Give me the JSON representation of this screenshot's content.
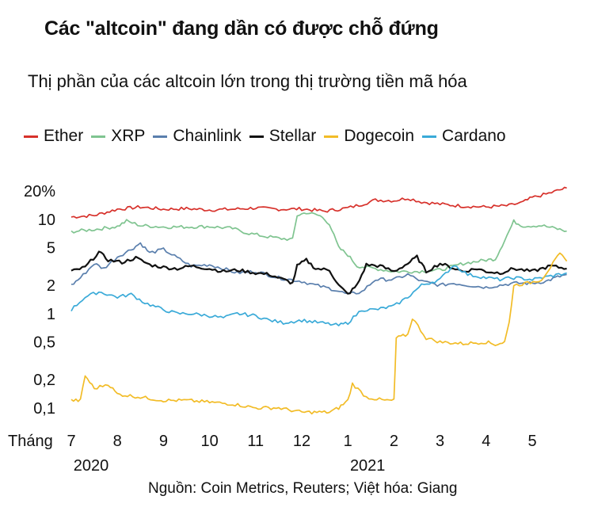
{
  "title": "Các \"altcoin\" đang dần có được chỗ đứng",
  "subtitle": "Thị phần của các altcoin lớn trong thị trường tiền mã hóa",
  "source": "Nguồn: Coin Metrics, Reuters; Việt hóa: Giang",
  "chart_data": {
    "type": "line",
    "yscale": "log",
    "ylim": [
      0.08,
      24
    ],
    "y_ticks": [
      {
        "value": 20,
        "label": "20%"
      },
      {
        "value": 10,
        "label": "10"
      },
      {
        "value": 5,
        "label": "5"
      },
      {
        "value": 2,
        "label": "2"
      },
      {
        "value": 1,
        "label": "1"
      },
      {
        "value": 0.5,
        "label": "0,5"
      },
      {
        "value": 0.2,
        "label": "0,2"
      },
      {
        "value": 0.1,
        "label": "0,1"
      }
    ],
    "x_axis_prefix": "Tháng",
    "x_ticks": [
      {
        "month": 7,
        "label": "7"
      },
      {
        "month": 8,
        "label": "8"
      },
      {
        "month": 9,
        "label": "9"
      },
      {
        "month": 10,
        "label": "10"
      },
      {
        "month": 11,
        "label": "11"
      },
      {
        "month": 12,
        "label": "12"
      },
      {
        "month": 13,
        "label": "1"
      },
      {
        "month": 14,
        "label": "2"
      },
      {
        "month": 15,
        "label": "3"
      },
      {
        "month": 16,
        "label": "4"
      },
      {
        "month": 17,
        "label": "5"
      }
    ],
    "year_labels": [
      {
        "month": 7,
        "label": "2020"
      },
      {
        "month": 13,
        "label": "2021"
      }
    ],
    "x_unit_note": "x values are months counted from Jan 2020 (7 = Jul 2020, 13 = Jan 2021)",
    "series": [
      {
        "name": "Ether",
        "color": "#d7312b",
        "values": [
          [
            7,
            10.6
          ],
          [
            7.5,
            11.0
          ],
          [
            8,
            12.8
          ],
          [
            8.5,
            13.5
          ],
          [
            9,
            12.8
          ],
          [
            9.5,
            13.0
          ],
          [
            10,
            12.6
          ],
          [
            10.5,
            12.8
          ],
          [
            11,
            13.2
          ],
          [
            11.5,
            12.8
          ],
          [
            12,
            12.9
          ],
          [
            12.5,
            12.2
          ],
          [
            13,
            13.2
          ],
          [
            13.3,
            14.4
          ],
          [
            13.6,
            16.0
          ],
          [
            14,
            15.8
          ],
          [
            14.3,
            16.8
          ],
          [
            14.6,
            15.3
          ],
          [
            15,
            14.5
          ],
          [
            15.5,
            13.8
          ],
          [
            16,
            13.5
          ],
          [
            16.5,
            14.0
          ],
          [
            16.8,
            15.2
          ],
          [
            17,
            17.0
          ],
          [
            17.3,
            18.5
          ],
          [
            17.6,
            20.5
          ],
          [
            17.75,
            21.5
          ]
        ]
      },
      {
        "name": "XRP",
        "color": "#7fc490",
        "values": [
          [
            7,
            7.4
          ],
          [
            7.5,
            7.8
          ],
          [
            8,
            8.4
          ],
          [
            8.2,
            9.6
          ],
          [
            8.5,
            8.6
          ],
          [
            9,
            8.3
          ],
          [
            9.5,
            8.3
          ],
          [
            10,
            8.4
          ],
          [
            10.5,
            8.0
          ],
          [
            10.8,
            7.2
          ],
          [
            11.2,
            6.6
          ],
          [
            11.5,
            6.3
          ],
          [
            11.8,
            6.1
          ],
          [
            11.9,
            11.0
          ],
          [
            12.1,
            11.8
          ],
          [
            12.4,
            10.9
          ],
          [
            12.6,
            9.0
          ],
          [
            12.8,
            5.0
          ],
          [
            13,
            4.2
          ],
          [
            13.2,
            3.2
          ],
          [
            13.6,
            3.0
          ],
          [
            14,
            2.8
          ],
          [
            14.5,
            2.8
          ],
          [
            15,
            2.9
          ],
          [
            15.5,
            3.4
          ],
          [
            16,
            3.7
          ],
          [
            16.2,
            3.8
          ],
          [
            16.4,
            6.0
          ],
          [
            16.6,
            9.5
          ],
          [
            16.8,
            8.5
          ],
          [
            17.2,
            8.6
          ],
          [
            17.5,
            8.0
          ],
          [
            17.75,
            7.5
          ]
        ]
      },
      {
        "name": "Chainlink",
        "color": "#5a7fad",
        "values": [
          [
            7,
            2.0
          ],
          [
            7.2,
            2.4
          ],
          [
            7.5,
            3.4
          ],
          [
            7.7,
            3.0
          ],
          [
            8,
            4.0
          ],
          [
            8.3,
            4.8
          ],
          [
            8.5,
            5.6
          ],
          [
            8.7,
            4.4
          ],
          [
            9,
            4.8
          ],
          [
            9.3,
            3.9
          ],
          [
            9.6,
            3.2
          ],
          [
            10,
            3.3
          ],
          [
            10.3,
            3.0
          ],
          [
            10.6,
            2.7
          ],
          [
            11,
            2.8
          ],
          [
            11.5,
            2.4
          ],
          [
            12,
            2.2
          ],
          [
            12.3,
            2.0
          ],
          [
            12.7,
            1.8
          ],
          [
            13,
            1.6
          ],
          [
            13.3,
            1.7
          ],
          [
            13.6,
            2.3
          ],
          [
            14,
            2.3
          ],
          [
            14.3,
            2.6
          ],
          [
            14.6,
            2.2
          ],
          [
            15,
            2.0
          ],
          [
            15.3,
            2.1
          ],
          [
            15.6,
            2.0
          ],
          [
            16,
            1.9
          ],
          [
            16.3,
            2.0
          ],
          [
            16.6,
            2.1
          ],
          [
            17,
            2.1
          ],
          [
            17.3,
            2.2
          ],
          [
            17.5,
            2.4
          ],
          [
            17.75,
            2.6
          ]
        ]
      },
      {
        "name": "Stellar",
        "color": "#111111",
        "values": [
          [
            7,
            2.8
          ],
          [
            7.3,
            3.1
          ],
          [
            7.6,
            4.5
          ],
          [
            7.8,
            3.7
          ],
          [
            8.1,
            3.5
          ],
          [
            8.4,
            3.9
          ],
          [
            8.7,
            3.3
          ],
          [
            9,
            3.1
          ],
          [
            9.3,
            3.0
          ],
          [
            9.6,
            3.2
          ],
          [
            10,
            3.0
          ],
          [
            10.3,
            2.8
          ],
          [
            10.6,
            2.9
          ],
          [
            11,
            2.7
          ],
          [
            11.3,
            2.6
          ],
          [
            11.6,
            2.3
          ],
          [
            11.8,
            2.1
          ],
          [
            11.9,
            3.2
          ],
          [
            12.1,
            3.7
          ],
          [
            12.3,
            3.0
          ],
          [
            12.6,
            2.9
          ],
          [
            12.8,
            2.0
          ],
          [
            13,
            1.6
          ],
          [
            13.2,
            2.0
          ],
          [
            13.4,
            3.3
          ],
          [
            13.7,
            3.2
          ],
          [
            14,
            2.8
          ],
          [
            14.3,
            3.4
          ],
          [
            14.5,
            4.0
          ],
          [
            14.7,
            2.8
          ],
          [
            15,
            3.4
          ],
          [
            15.5,
            2.8
          ],
          [
            15.8,
            3.0
          ],
          [
            16,
            2.8
          ],
          [
            16.3,
            2.7
          ],
          [
            16.6,
            3.0
          ],
          [
            17,
            2.8
          ],
          [
            17.4,
            3.2
          ],
          [
            17.75,
            3.0
          ]
        ]
      },
      {
        "name": "Dogecoin",
        "color": "#f2bc27",
        "values": [
          [
            7,
            0.12
          ],
          [
            7.2,
            0.12
          ],
          [
            7.3,
            0.22
          ],
          [
            7.5,
            0.16
          ],
          [
            7.8,
            0.18
          ],
          [
            8,
            0.14
          ],
          [
            8.5,
            0.13
          ],
          [
            9,
            0.12
          ],
          [
            9.5,
            0.12
          ],
          [
            10,
            0.115
          ],
          [
            10.5,
            0.11
          ],
          [
            11,
            0.1
          ],
          [
            11.5,
            0.1
          ],
          [
            12,
            0.09
          ],
          [
            12.6,
            0.09
          ],
          [
            12.8,
            0.1
          ],
          [
            13,
            0.12
          ],
          [
            13.1,
            0.18
          ],
          [
            13.4,
            0.13
          ],
          [
            13.8,
            0.12
          ],
          [
            14,
            0.12
          ],
          [
            14.05,
            0.55
          ],
          [
            14.3,
            0.6
          ],
          [
            14.4,
            0.9
          ],
          [
            14.7,
            0.55
          ],
          [
            15,
            0.5
          ],
          [
            15.5,
            0.48
          ],
          [
            16,
            0.5
          ],
          [
            16.2,
            0.47
          ],
          [
            16.4,
            0.5
          ],
          [
            16.5,
            0.8
          ],
          [
            16.6,
            2.0
          ],
          [
            16.9,
            2.1
          ],
          [
            17.2,
            2.3
          ],
          [
            17.45,
            3.4
          ],
          [
            17.6,
            4.3
          ],
          [
            17.75,
            3.6
          ]
        ]
      },
      {
        "name": "Cardano",
        "color": "#3aaad8",
        "values": [
          [
            7,
            1.1
          ],
          [
            7.3,
            1.5
          ],
          [
            7.6,
            1.7
          ],
          [
            8,
            1.5
          ],
          [
            8.3,
            1.6
          ],
          [
            8.6,
            1.3
          ],
          [
            9,
            1.1
          ],
          [
            9.3,
            1.0
          ],
          [
            9.6,
            1.0
          ],
          [
            10,
            0.95
          ],
          [
            10.3,
            0.9
          ],
          [
            10.6,
            1.0
          ],
          [
            11,
            0.95
          ],
          [
            11.3,
            0.85
          ],
          [
            11.6,
            0.8
          ],
          [
            12,
            0.85
          ],
          [
            12.4,
            0.8
          ],
          [
            12.8,
            0.75
          ],
          [
            13,
            0.8
          ],
          [
            13.3,
            1.1
          ],
          [
            13.6,
            1.1
          ],
          [
            14,
            1.2
          ],
          [
            14.3,
            1.5
          ],
          [
            14.6,
            2.0
          ],
          [
            15,
            2.3
          ],
          [
            15.3,
            3.3
          ],
          [
            15.6,
            2.6
          ],
          [
            16,
            2.4
          ],
          [
            16.3,
            2.3
          ],
          [
            16.6,
            2.4
          ],
          [
            17,
            2.3
          ],
          [
            17.4,
            2.5
          ],
          [
            17.75,
            2.7
          ]
        ]
      }
    ]
  }
}
